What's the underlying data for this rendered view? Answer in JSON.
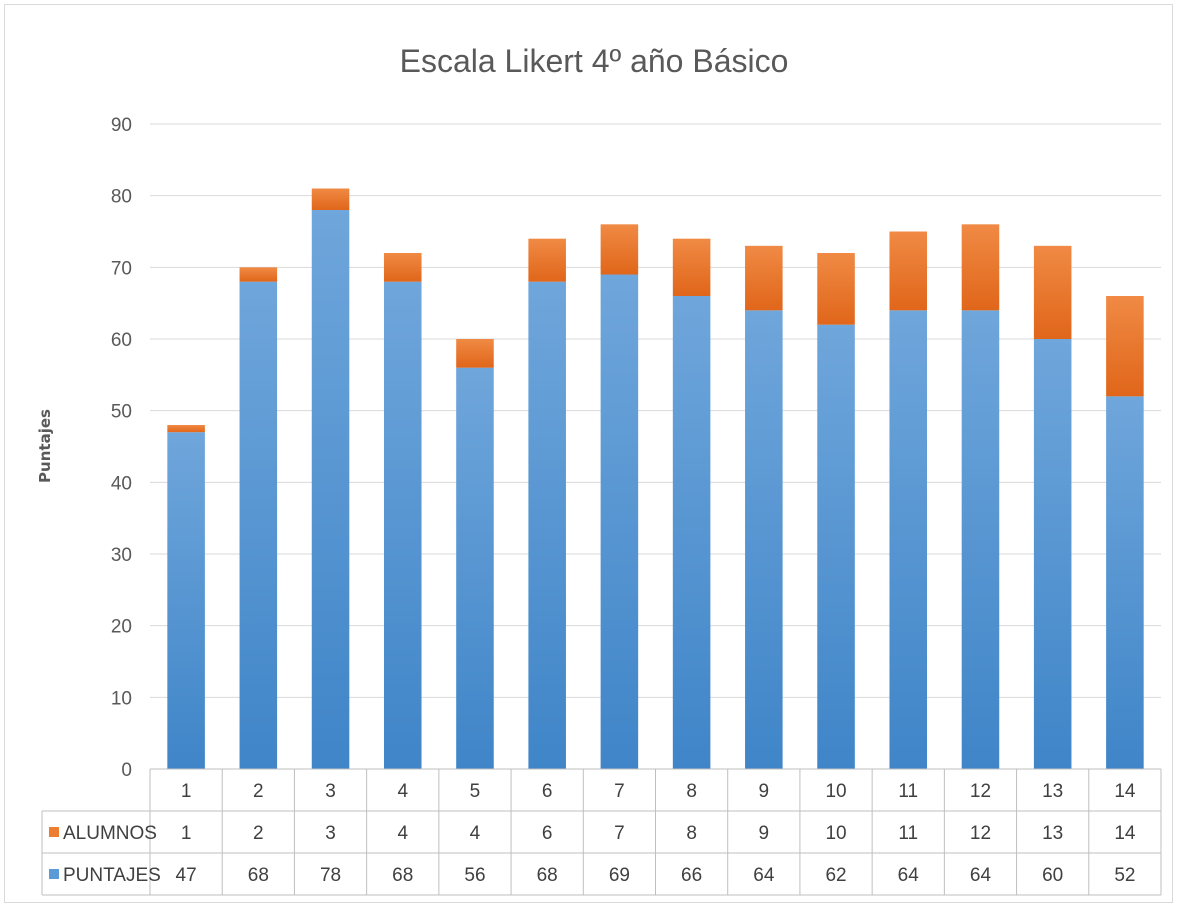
{
  "chart_data": {
    "type": "bar",
    "stacked": true,
    "title": "Escala Likert 4º año Básico",
    "ylabel": "Puntajes",
    "xlabel": "",
    "ylim": [
      0,
      90
    ],
    "yticks": [
      0,
      10,
      20,
      30,
      40,
      50,
      60,
      70,
      80,
      90
    ],
    "grid": true,
    "categories": [
      "1",
      "2",
      "3",
      "4",
      "5",
      "6",
      "7",
      "8",
      "9",
      "10",
      "11",
      "12",
      "13",
      "14"
    ],
    "series": [
      {
        "name": "PUNTAJES",
        "color": "#5b9bd5",
        "values": [
          47,
          68,
          78,
          68,
          56,
          68,
          69,
          66,
          64,
          62,
          64,
          64,
          60,
          52
        ]
      },
      {
        "name": "ALUMNOS",
        "color": "#ed7d31",
        "values": [
          1,
          2,
          3,
          4,
          4,
          6,
          7,
          8,
          9,
          10,
          11,
          12,
          13,
          14
        ]
      }
    ],
    "data_table": {
      "rows": [
        "ALUMNOS",
        "PUNTAJES"
      ]
    }
  }
}
